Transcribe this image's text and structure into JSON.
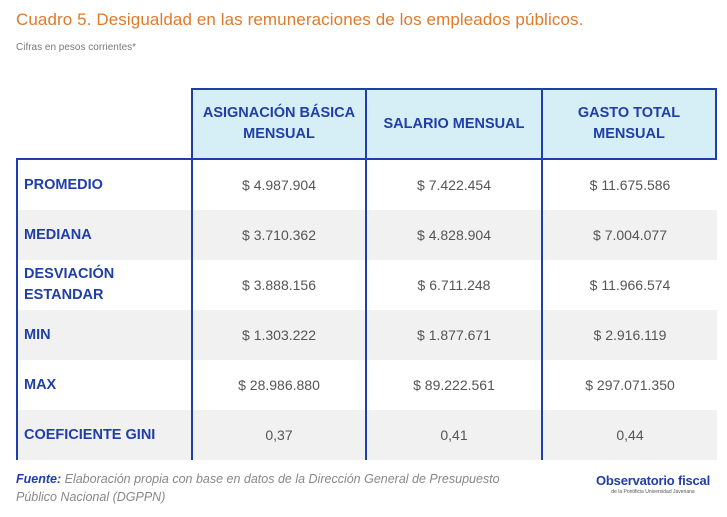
{
  "header": {
    "title": "Cuadro 5. Desigualdad en las remuneraciones de los empleados públicos.",
    "subtitle": "Cifras en pesos corrientes*"
  },
  "table": {
    "columns": [
      "ASIGNACIÓN BÁSICA MENSUAL",
      "SALARIO MENSUAL",
      "GASTO TOTAL MENSUAL"
    ],
    "rows": [
      {
        "label": "PROMEDIO",
        "values": [
          "$ 4.987.904",
          "$ 7.422.454",
          "$ 11.675.586"
        ]
      },
      {
        "label": "MEDIANA",
        "values": [
          "$ 3.710.362",
          "$ 4.828.904",
          "$ 7.004.077"
        ]
      },
      {
        "label": "DESVIACIÓN ESTANDAR",
        "values": [
          "$ 3.888.156",
          "$ 6.711.248",
          "$ 11.966.574"
        ]
      },
      {
        "label": "MIN",
        "values": [
          "$ 1.303.222",
          "$ 1.877.671",
          "$ 2.916.119"
        ]
      },
      {
        "label": "MAX",
        "values": [
          "$ 28.986.880",
          "$ 89.222.561",
          "$ 297.071.350"
        ]
      },
      {
        "label": "COEFICIENTE GINI",
        "values": [
          "0,37",
          "0,41",
          "0,44"
        ]
      }
    ]
  },
  "footnote": {
    "lead": "Fuente:",
    "text": " Elaboración propia con base en datos de la Dirección General de Presupuesto Público Nacional (DGPPN)"
  },
  "logo": {
    "name": "Observatorio fiscal",
    "tagline": "de la Pontificia Universidad Javeriana"
  }
}
